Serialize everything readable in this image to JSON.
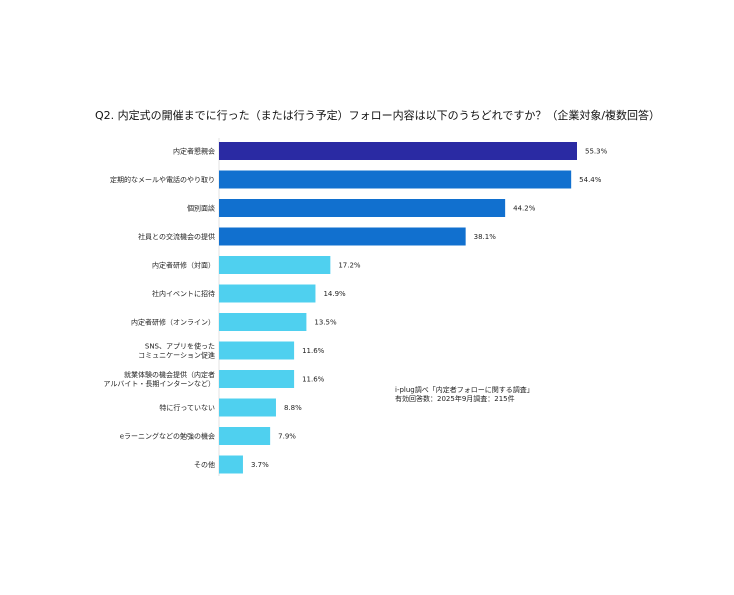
{
  "chart_data": {
    "type": "bar",
    "orientation": "horizontal",
    "title": "Q2. 内定式の開催までに行った（または行う予定）フォロー内容は以下のうちどれですか？（企業対象/複数回答）",
    "categories": [
      [
        "内定者懇親会"
      ],
      [
        "定期的なメールや電話のやり取り"
      ],
      [
        "個別面談"
      ],
      [
        "社員との交流機会の提供"
      ],
      [
        "内定者研修（対面）"
      ],
      [
        "社内イベントに招待"
      ],
      [
        "内定者研修（オンライン）"
      ],
      [
        "SNS、アプリを使った",
        "コミュニケーション促進"
      ],
      [
        "就業体験の機会提供（内定者",
        "アルバイト・長期インターンなど）"
      ],
      [
        "特に行っていない"
      ],
      [
        "eラーニングなどの勉強の機会"
      ],
      [
        "その他"
      ]
    ],
    "values": [
      55.3,
      54.4,
      44.2,
      38.1,
      17.2,
      14.9,
      13.5,
      11.6,
      11.6,
      8.8,
      7.9,
      3.7
    ],
    "value_labels": [
      "55.3%",
      "54.4%",
      "44.2%",
      "38.1%",
      "17.2%",
      "14.9%",
      "13.5%",
      "11.6%",
      "11.6%",
      "8.8%",
      "7.9%",
      "3.7%"
    ],
    "bar_colors": [
      "#2a2aa3",
      "#1170cf",
      "#1170cf",
      "#1170cf",
      "#4fd0ef",
      "#4fd0ef",
      "#4fd0ef",
      "#4fd0ef",
      "#4fd0ef",
      "#4fd0ef",
      "#4fd0ef",
      "#4fd0ef"
    ],
    "xlim": [
      0,
      55.3
    ],
    "grid": false,
    "legend": "none",
    "source_note": [
      "i-plug調べ「内定者フォローに関する調査」",
      "有効回答数：2025年9月調査：215件"
    ]
  }
}
